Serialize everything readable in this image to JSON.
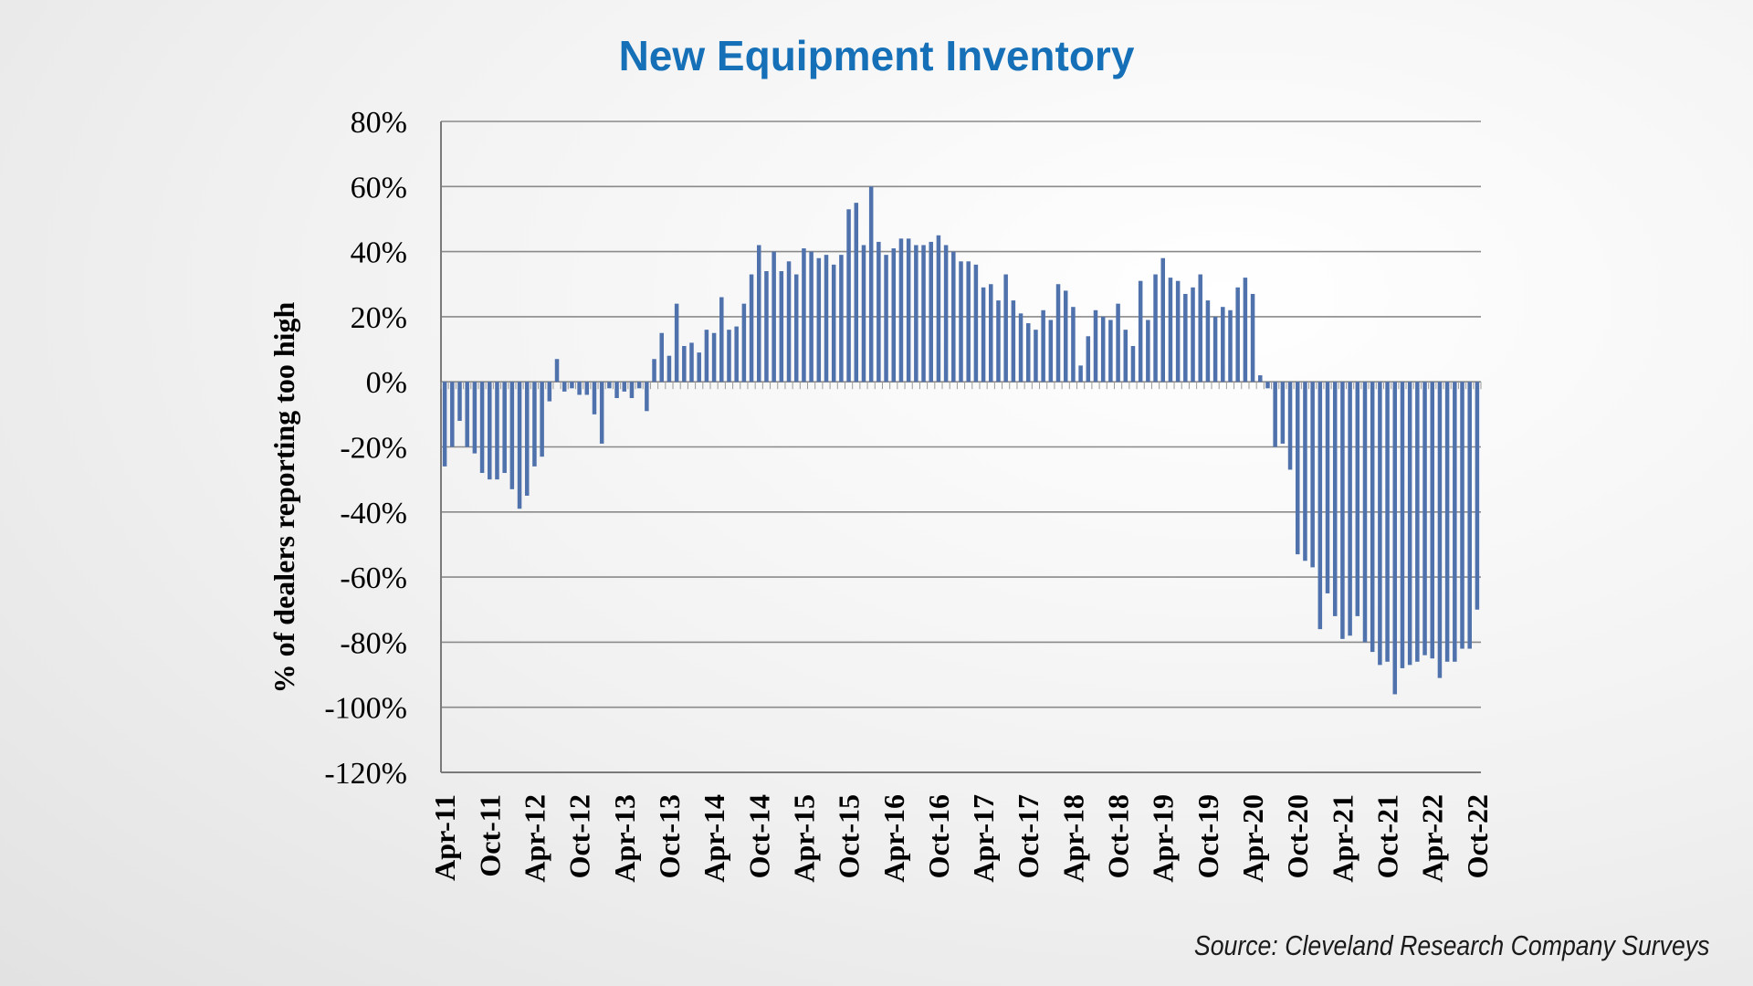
{
  "chart_data": {
    "type": "bar",
    "title": "New Equipment Inventory",
    "ylabel": "% of dealers reporting too high",
    "xlabel": "",
    "ylim": [
      -120,
      80
    ],
    "yticks": [
      80,
      60,
      40,
      20,
      0,
      -20,
      -40,
      -60,
      -80,
      -100,
      -120
    ],
    "ytick_format": "%",
    "grid": true,
    "bar_color": "#4f72ad",
    "x_tick_labels": [
      "Apr-11",
      "Oct-11",
      "Apr-12",
      "Oct-12",
      "Apr-13",
      "Oct-13",
      "Apr-14",
      "Oct-14",
      "Apr-15",
      "Oct-15",
      "Apr-16",
      "Oct-16",
      "Apr-17",
      "Oct-17",
      "Apr-18",
      "Oct-18",
      "Apr-19",
      "Oct-19",
      "Apr-20",
      "Oct-20",
      "Apr-21",
      "Oct-21",
      "Apr-22",
      "Oct-22"
    ],
    "start_period": "Apr-11",
    "end_period": "Oct-22",
    "series": [
      {
        "values": [
          -26,
          -20,
          -12,
          -20,
          -22,
          -28,
          -30,
          -30,
          -28,
          -33,
          -39,
          -35,
          -26,
          -23,
          -6,
          7,
          -3,
          -2,
          -4,
          -4,
          -10,
          -19,
          -2,
          -5,
          -3,
          -5,
          -2,
          -9,
          7,
          15,
          8,
          24,
          11,
          12,
          9,
          16,
          15,
          26,
          16,
          17,
          24,
          33,
          42,
          34,
          40,
          34,
          37,
          33,
          41,
          40,
          38,
          39,
          36,
          39,
          53,
          55,
          42,
          60,
          43,
          39,
          41,
          44,
          44,
          42,
          42,
          43,
          45,
          42,
          40,
          37,
          37,
          36,
          29,
          30,
          25,
          33,
          25,
          21,
          18,
          16,
          22,
          19,
          30,
          28,
          23,
          5,
          14,
          22,
          20,
          19,
          24,
          16,
          11,
          31,
          19,
          33,
          38,
          32,
          31,
          27,
          29,
          33,
          25,
          20,
          23,
          22,
          29,
          32,
          27,
          2,
          -2,
          -20,
          -19,
          -27,
          -53,
          -55,
          -57,
          -76,
          -65,
          -72,
          -79,
          -78,
          -72,
          -80,
          -83,
          -87,
          -86,
          -96,
          -88,
          -87,
          -86,
          -84,
          -85,
          -91,
          -86,
          -86,
          -82,
          -82,
          -70
        ]
      }
    ],
    "source": "Source: Cleveland Research Company Surveys"
  }
}
